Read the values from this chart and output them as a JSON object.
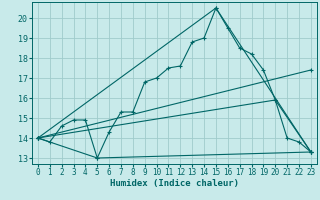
{
  "xlabel": "Humidex (Indice chaleur)",
  "bg_color": "#c8eaea",
  "line_color": "#006666",
  "grid_color": "#a0cccc",
  "xlim": [
    -0.5,
    23.5
  ],
  "ylim": [
    12.7,
    20.8
  ],
  "yticks": [
    13,
    14,
    15,
    16,
    17,
    18,
    19,
    20
  ],
  "xticks": [
    0,
    1,
    2,
    3,
    4,
    5,
    6,
    7,
    8,
    9,
    10,
    11,
    12,
    13,
    14,
    15,
    16,
    17,
    18,
    19,
    20,
    21,
    22,
    23
  ],
  "line1_x": [
    0,
    1,
    2,
    3,
    4,
    5,
    6,
    7,
    8,
    9,
    10,
    11,
    12,
    13,
    14,
    15,
    16,
    17,
    18,
    19,
    20,
    21,
    22,
    23
  ],
  "line1_y": [
    14.0,
    13.8,
    14.6,
    14.9,
    14.9,
    13.0,
    14.3,
    15.3,
    15.3,
    16.8,
    17.0,
    17.5,
    17.6,
    18.8,
    19.0,
    20.5,
    19.5,
    18.5,
    18.2,
    17.4,
    15.9,
    14.0,
    13.8,
    13.3
  ],
  "line2_x": [
    0,
    5,
    23
  ],
  "line2_y": [
    14.0,
    13.0,
    13.3
  ],
  "line3_x": [
    0,
    15,
    23
  ],
  "line3_y": [
    14.0,
    20.5,
    13.3
  ],
  "line4_x": [
    0,
    23
  ],
  "line4_y": [
    14.0,
    17.4
  ],
  "line5_x": [
    0,
    20,
    23
  ],
  "line5_y": [
    14.0,
    15.9,
    13.3
  ]
}
